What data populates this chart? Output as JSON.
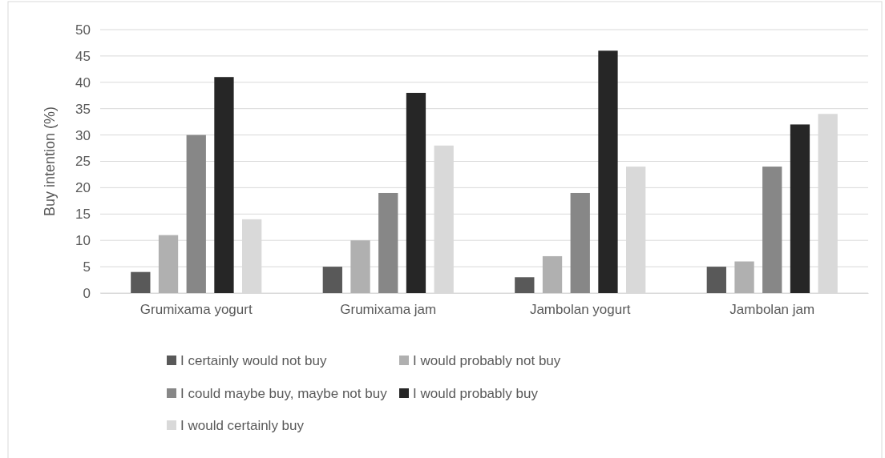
{
  "chart_data": {
    "type": "bar",
    "ylabel": "Buy intention (%)",
    "categories": [
      "Grumixama yogurt",
      "Grumixama jam",
      "Jambolan yogurt",
      "Jambolan jam"
    ],
    "series": [
      {
        "name": "I certainly would not buy",
        "color": "#595959",
        "values": [
          4,
          5,
          3,
          5
        ]
      },
      {
        "name": "I would probably not buy",
        "color": "#b0b0b0",
        "values": [
          11,
          10,
          7,
          6
        ]
      },
      {
        "name": "I could maybe buy, maybe not buy",
        "color": "#878787",
        "values": [
          30,
          19,
          19,
          24
        ]
      },
      {
        "name": "I would probably buy",
        "color": "#262626",
        "values": [
          41,
          38,
          46,
          32
        ]
      },
      {
        "name": "I would certainly buy",
        "color": "#d9d9d9",
        "values": [
          14,
          28,
          24,
          34
        ]
      }
    ],
    "ylim": [
      0,
      50
    ],
    "yticks": [
      0,
      5,
      10,
      15,
      20,
      25,
      30,
      35,
      40,
      45,
      50
    ],
    "grid": "y",
    "legend": "bottom"
  }
}
